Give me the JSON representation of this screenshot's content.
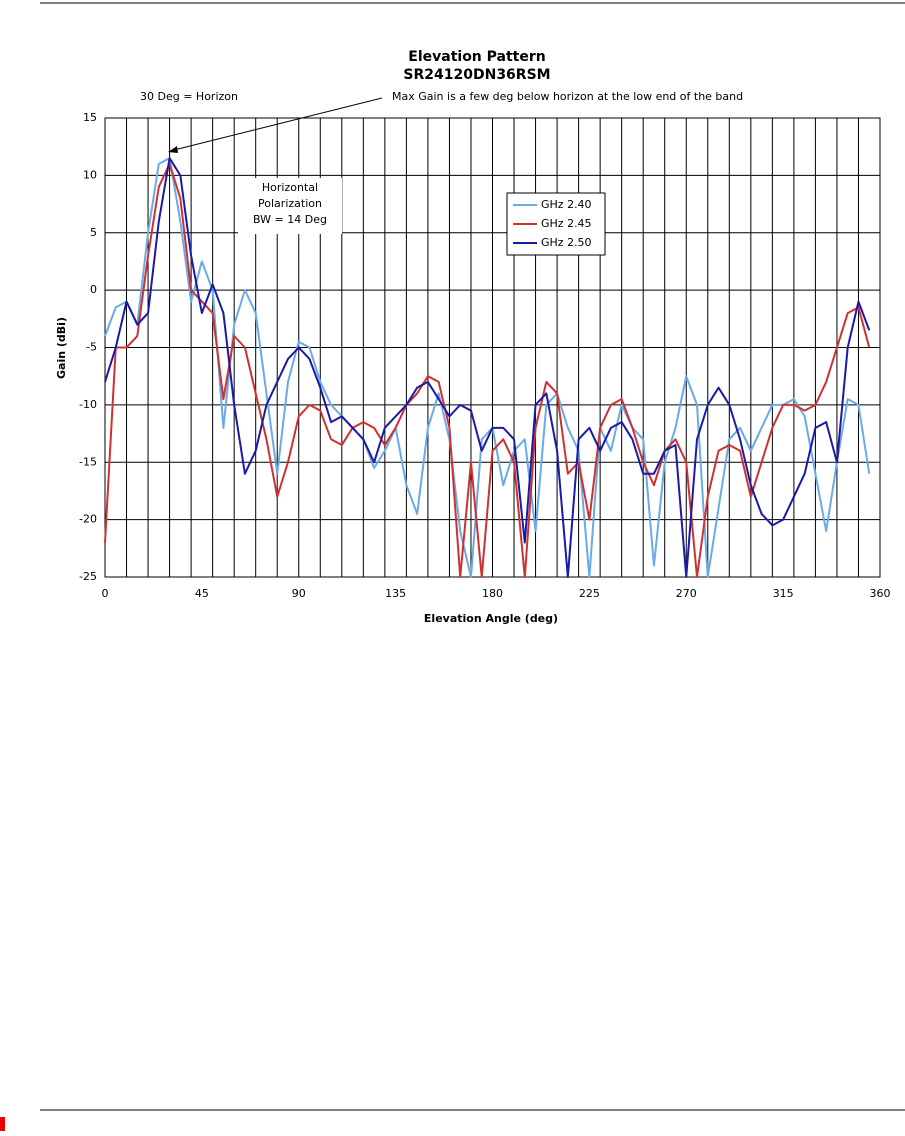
{
  "chart_data": {
    "type": "line",
    "title": "Elevation Pattern",
    "subtitle": "SR24120DN36RSM",
    "x_label": "Elevation Angle (deg)",
    "y_label": "Gain (dBi)",
    "annotations": [
      "30 Deg = Horizon",
      "Max Gain is a few deg below horizon at the low end of the band"
    ],
    "box_note": [
      "Horizontal",
      "Polarization",
      "BW = 14 Deg"
    ],
    "xlim": [
      0,
      360
    ],
    "ylim": [
      -25,
      15
    ],
    "xticks": [
      0,
      45,
      90,
      135,
      180,
      225,
      270,
      315,
      360
    ],
    "yticks": [
      -25,
      -20,
      -15,
      -10,
      -5,
      0,
      5,
      10,
      15
    ],
    "x_gridlines": [
      0,
      10,
      20,
      30,
      40,
      50,
      60,
      70,
      80,
      90,
      100,
      110,
      120,
      130,
      140,
      150,
      160,
      170,
      180,
      190,
      200,
      210,
      220,
      230,
      240,
      250,
      260,
      270,
      280,
      290,
      300,
      310,
      320,
      330,
      340,
      350,
      360
    ],
    "grid": true,
    "legend": "upper right",
    "x": [
      0,
      5,
      10,
      15,
      20,
      25,
      30,
      35,
      40,
      45,
      50,
      55,
      60,
      65,
      70,
      75,
      80,
      85,
      90,
      95,
      100,
      105,
      110,
      115,
      120,
      125,
      130,
      135,
      140,
      145,
      150,
      155,
      160,
      165,
      170,
      175,
      180,
      185,
      190,
      195,
      200,
      205,
      210,
      215,
      220,
      225,
      230,
      235,
      240,
      245,
      250,
      255,
      260,
      265,
      270,
      275,
      280,
      285,
      290,
      295,
      300,
      305,
      310,
      315,
      320,
      325,
      330,
      335,
      340,
      345,
      350,
      355
    ],
    "series": [
      {
        "name": "GHz 2.40",
        "color": "#6aaae8",
        "values": [
          -4,
          -1.5,
          -1,
          -3,
          5,
          11,
          11.5,
          6,
          -1,
          2.5,
          0,
          -12,
          -3,
          0,
          -2,
          -9,
          -16,
          -8,
          -4.5,
          -5,
          -8,
          -10,
          -11,
          -12,
          -13,
          -15.5,
          -14,
          -12,
          -17,
          -19.5,
          -12,
          -9,
          -13,
          -21,
          -25,
          -13,
          -12,
          -17,
          -14,
          -13,
          -21,
          -10,
          -9,
          -12,
          -14,
          -25,
          -12,
          -14,
          -10,
          -12,
          -13,
          -24,
          -15,
          -12,
          -7.5,
          -10,
          -25,
          -19,
          -13,
          -12,
          -14,
          -12,
          -10,
          -10,
          -9.5,
          -11,
          -16,
          -21,
          -15,
          -9.5,
          -10,
          -16
        ]
      },
      {
        "name": "GHz 2.45",
        "color": "#d03030",
        "values": [
          -22,
          -5,
          -5,
          -4,
          3,
          9,
          11,
          8,
          0,
          -1,
          -2,
          -9.5,
          -4,
          -5,
          -9,
          -13,
          -18,
          -15,
          -11,
          -10,
          -10.5,
          -13,
          -13.5,
          -12,
          -11.5,
          -12,
          -13.5,
          -12,
          -10,
          -9,
          -7.5,
          -8,
          -12,
          -25,
          -15,
          -25,
          -14,
          -13,
          -15,
          -25,
          -12,
          -8,
          -9,
          -16,
          -15,
          -20,
          -12,
          -10,
          -9.5,
          -12,
          -15,
          -17,
          -14,
          -13,
          -15,
          -25,
          -18,
          -14,
          -13.5,
          -14,
          -18,
          -15,
          -12,
          -10,
          -10,
          -10.5,
          -10,
          -8,
          -5,
          -2,
          -1.5,
          -5
        ]
      },
      {
        "name": "GHz 2.50",
        "color": "#1a1aa8",
        "values": [
          -8,
          -5,
          -1,
          -3,
          -2,
          6,
          11.5,
          10,
          3,
          -2,
          0.5,
          -2,
          -10,
          -16,
          -14,
          -10,
          -8,
          -6,
          -5,
          -6,
          -8.5,
          -11.5,
          -11,
          -12,
          -13,
          -15,
          -12,
          -11,
          -10,
          -8.5,
          -8,
          -9.5,
          -11,
          -10,
          -10.5,
          -14,
          -12,
          -12,
          -13,
          -22,
          -10,
          -9,
          -14,
          -25,
          -13,
          -12,
          -14,
          -12,
          -11.5,
          -13,
          -16,
          -16,
          -14,
          -13.5,
          -25,
          -13,
          -10,
          -8.5,
          -10,
          -13,
          -17,
          -19.5,
          -20.5,
          -20,
          -18,
          -16,
          -12,
          -11.5,
          -15,
          -5,
          -1,
          -3.5
        ]
      }
    ]
  }
}
